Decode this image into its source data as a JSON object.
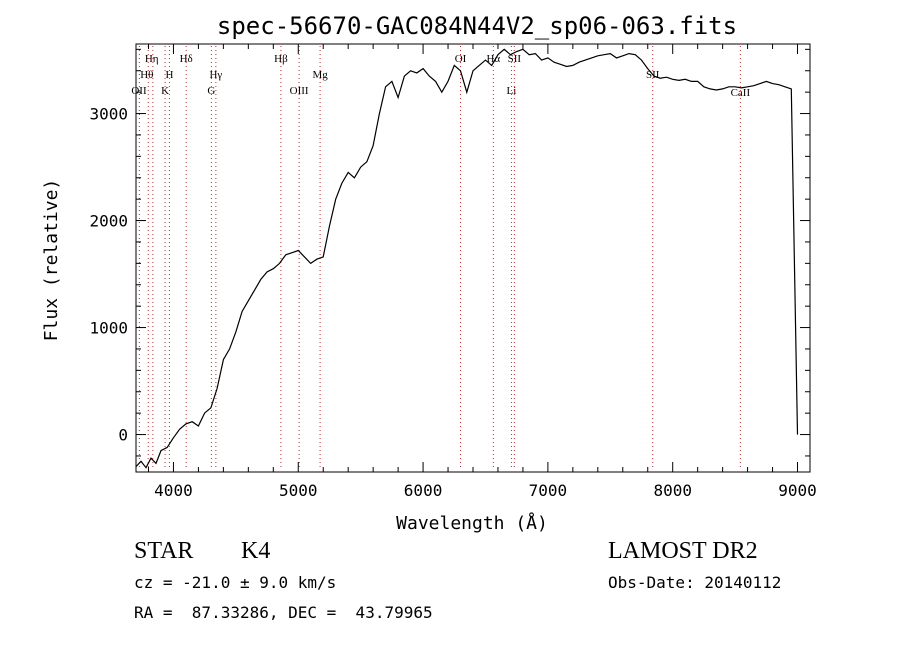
{
  "chart_data": {
    "type": "line",
    "title": "spec-56670-GAC084N44V2_sp06-063.fits",
    "xlabel": "Wavelength (Å)",
    "ylabel": "Flux (relative)",
    "xlim": [
      3700,
      9100
    ],
    "ylim": [
      -350,
      3650
    ],
    "xticks": [
      4000,
      5000,
      6000,
      7000,
      8000,
      9000
    ],
    "yticks": [
      0,
      1000,
      2000,
      3000
    ],
    "series": [
      {
        "x": [
          3700,
          3740,
          3780,
          3820,
          3860,
          3900,
          3950,
          4000,
          4050,
          4100,
          4150,
          4200,
          4250,
          4300,
          4350,
          4400,
          4450,
          4500,
          4550,
          4600,
          4650,
          4700,
          4750,
          4800,
          4850,
          4900,
          4950,
          5000,
          5050,
          5100,
          5150,
          5200,
          5250,
          5300,
          5350,
          5400,
          5450,
          5500,
          5550,
          5600,
          5650,
          5700,
          5750,
          5800,
          5850,
          5900,
          5950,
          6000,
          6050,
          6100,
          6150,
          6200,
          6250,
          6300,
          6350,
          6400,
          6450,
          6500,
          6550,
          6600,
          6650,
          6700,
          6750,
          6800,
          6850,
          6900,
          6950,
          7000,
          7050,
          7100,
          7150,
          7200,
          7250,
          7300,
          7350,
          7400,
          7450,
          7500,
          7550,
          7600,
          7650,
          7700,
          7750,
          7800,
          7850,
          7900,
          7950,
          8000,
          8050,
          8100,
          8150,
          8200,
          8250,
          8300,
          8350,
          8400,
          8450,
          8500,
          8550,
          8600,
          8650,
          8700,
          8750,
          8800,
          8850,
          8900,
          8950,
          9000
        ],
        "y": [
          -300,
          -250,
          -310,
          -220,
          -270,
          -150,
          -120,
          -30,
          50,
          100,
          120,
          80,
          200,
          250,
          430,
          700,
          800,
          960,
          1150,
          1250,
          1350,
          1450,
          1520,
          1550,
          1600,
          1680,
          1700,
          1720,
          1660,
          1600,
          1640,
          1660,
          1950,
          2200,
          2350,
          2450,
          2400,
          2500,
          2550,
          2700,
          3000,
          3250,
          3300,
          3150,
          3350,
          3400,
          3380,
          3420,
          3350,
          3300,
          3200,
          3300,
          3450,
          3400,
          3200,
          3400,
          3450,
          3500,
          3450,
          3550,
          3600,
          3550,
          3580,
          3600,
          3550,
          3560,
          3500,
          3520,
          3480,
          3460,
          3440,
          3450,
          3480,
          3500,
          3520,
          3540,
          3550,
          3560,
          3520,
          3540,
          3560,
          3550,
          3500,
          3420,
          3350,
          3330,
          3340,
          3320,
          3310,
          3320,
          3300,
          3300,
          3250,
          3230,
          3220,
          3230,
          3250,
          3250,
          3240,
          3250,
          3260,
          3280,
          3300,
          3280,
          3270,
          3250,
          3230,
          0
        ]
      }
    ],
    "line_markers": [
      {
        "label": "Hη",
        "x": 3835
      },
      {
        "label": "Hθ",
        "x": 3798
      },
      {
        "label": "OII",
        "x": 3727
      },
      {
        "label": "H",
        "x": 3968
      },
      {
        "label": "K",
        "x": 3933
      },
      {
        "label": "Hδ",
        "x": 4102
      },
      {
        "label": "Hγ",
        "x": 4340
      },
      {
        "label": "G",
        "x": 4304
      },
      {
        "label": "Hβ",
        "x": 4861
      },
      {
        "label": "OIII",
        "x": 5007
      },
      {
        "label": "Mg",
        "x": 5175
      },
      {
        "label": "OI",
        "x": 6300
      },
      {
        "label": "Hα",
        "x": 6563
      },
      {
        "label": "Li",
        "x": 6708
      },
      {
        "label": "SII",
        "x": 6731
      },
      {
        "label": "SII",
        "x": 7840
      },
      {
        "label": "CaII",
        "x": 8542
      }
    ],
    "grid": false
  },
  "info": {
    "object_class": "STAR",
    "subclass": "K4",
    "survey": "LAMOST DR2",
    "cz": "cz = -21.0 ± 9.0 km/s",
    "obs_date": "Obs-Date: 20140112",
    "coords": "RA =  87.33286, DEC =  43.79965"
  }
}
